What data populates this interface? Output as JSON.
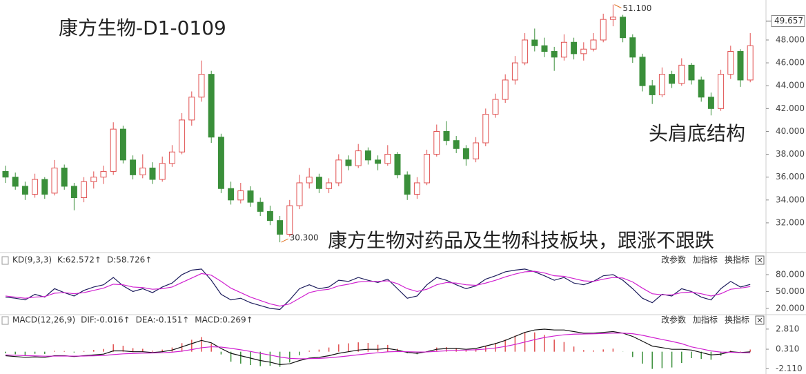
{
  "chart_data": [
    {
      "type": "candlestick",
      "title": "康方生物-D1-0109",
      "annotations": [
        "头肩底结构",
        "康方生物对药品及生物科技板块，跟涨不跟跌"
      ],
      "high_label": {
        "value": 51.1,
        "label": "51.100"
      },
      "low_label": {
        "value": 30.3,
        "label": "30.300"
      },
      "current_price": 49.657,
      "up_color": "#e05050",
      "down_color": "#3a8f3a",
      "ylim": [
        29.46,
        51.5
      ],
      "yticks": [
        {
          "value": 32,
          "label": "32.000"
        },
        {
          "value": 34,
          "label": "34.000"
        },
        {
          "value": 36,
          "label": "36.000"
        },
        {
          "value": 38,
          "label": "38.000"
        },
        {
          "value": 40,
          "label": "40.000"
        },
        {
          "value": 42,
          "label": "42.000"
        },
        {
          "value": 44,
          "label": "44.000"
        },
        {
          "value": 46,
          "label": "46.000"
        },
        {
          "value": 48,
          "label": "48.000"
        }
      ],
      "open": [
        36.5,
        36.0,
        35.2,
        34.5,
        35.8,
        34.6,
        36.8,
        35.2,
        34.2,
        35.6,
        36.0,
        36.5,
        40.2,
        37.5,
        36.2,
        36.8,
        35.8,
        37.2,
        38.2,
        41.0,
        43.0,
        45.0,
        39.5,
        35.0,
        34.0,
        34.8,
        33.8,
        33.0,
        32.2,
        31.0,
        33.5,
        35.5,
        36.0,
        35.0,
        35.5,
        37.5,
        37.0,
        38.3,
        37.5,
        37.2,
        38.0,
        36.2,
        34.5,
        35.5,
        38.0,
        40.0,
        39.2,
        38.5,
        37.6,
        39.0,
        41.5,
        42.8,
        44.5,
        46.0,
        48.0,
        47.5,
        47.0,
        46.5,
        47.8,
        46.8,
        47.2,
        48.0,
        49.8,
        50.0,
        48.2,
        46.5,
        44.0,
        43.2,
        45.0,
        44.2,
        45.8,
        44.5,
        43.0,
        42.0,
        45.0,
        47.0,
        44.5
      ],
      "high": [
        37.0,
        36.4,
        35.6,
        36.3,
        36.0,
        37.5,
        37.1,
        35.5,
        36.0,
        36.5,
        37.0,
        40.8,
        40.5,
        37.9,
        38.0,
        37.3,
        37.8,
        38.8,
        41.6,
        43.5,
        46.2,
        45.3,
        39.8,
        35.6,
        35.5,
        35.2,
        34.2,
        33.5,
        32.6,
        34.0,
        36.2,
        36.8,
        36.3,
        35.9,
        38.0,
        37.9,
        38.9,
        38.6,
        37.9,
        38.8,
        38.2,
        36.5,
        36.0,
        38.4,
        40.6,
        40.9,
        39.6,
        38.8,
        39.5,
        42.0,
        43.3,
        45.0,
        46.6,
        48.6,
        49.0,
        48.2,
        47.4,
        48.5,
        48.2,
        47.8,
        48.6,
        50.3,
        51.1,
        50.2,
        48.5,
        46.8,
        44.5,
        45.6,
        45.3,
        46.4,
        46.0,
        44.8,
        43.4,
        45.4,
        47.5,
        47.2,
        48.6
      ],
      "low": [
        35.5,
        34.9,
        34.0,
        34.2,
        34.1,
        34.4,
        34.9,
        33.1,
        33.8,
        35.0,
        35.4,
        36.2,
        37.2,
        35.8,
        35.9,
        35.4,
        35.6,
        36.9,
        38.0,
        40.5,
        42.6,
        39.0,
        34.6,
        33.6,
        33.7,
        33.4,
        32.6,
        31.8,
        30.3,
        30.8,
        33.2,
        35.0,
        34.6,
        34.6,
        35.2,
        36.6,
        36.8,
        37.1,
        36.6,
        37.0,
        35.9,
        34.0,
        34.1,
        35.3,
        37.8,
        38.8,
        38.1,
        37.0,
        37.3,
        38.7,
        41.2,
        42.5,
        44.1,
        45.8,
        47.0,
        46.5,
        45.3,
        46.2,
        46.3,
        46.2,
        47.0,
        47.8,
        49.2,
        47.8,
        46.0,
        43.5,
        42.4,
        43.0,
        43.8,
        44.0,
        44.1,
        42.6,
        41.4,
        41.8,
        44.6,
        43.9,
        44.3
      ],
      "close": [
        36.0,
        35.2,
        34.5,
        35.8,
        34.5,
        36.8,
        35.2,
        34.2,
        35.6,
        36.0,
        36.5,
        40.2,
        37.5,
        36.2,
        36.8,
        35.8,
        37.2,
        38.2,
        41.0,
        43.0,
        45.0,
        39.5,
        35.0,
        34.0,
        34.8,
        33.8,
        33.0,
        32.2,
        31.0,
        33.5,
        35.5,
        36.0,
        35.0,
        35.5,
        37.5,
        37.0,
        38.3,
        37.5,
        37.2,
        38.0,
        36.2,
        34.5,
        35.5,
        38.0,
        40.0,
        39.2,
        38.5,
        37.6,
        39.0,
        41.5,
        42.8,
        44.5,
        46.0,
        48.0,
        47.5,
        47.0,
        46.5,
        47.8,
        46.8,
        47.2,
        48.0,
        49.8,
        50.0,
        48.2,
        46.5,
        44.0,
        43.2,
        45.0,
        44.2,
        45.8,
        44.5,
        43.0,
        42.0,
        45.0,
        47.0,
        44.5,
        47.5
      ]
    },
    {
      "type": "line",
      "name": "KD(9,3,3)",
      "buttons": [
        "改参数",
        "加指标",
        "换指标"
      ],
      "ylim": [
        10,
        96
      ],
      "yticks": [
        {
          "value": 80,
          "label": "80.000"
        },
        {
          "value": 50,
          "label": "50.000"
        },
        {
          "value": 20,
          "label": "20.000"
        }
      ],
      "series": [
        {
          "name": "K:62.572↑",
          "color": "#1c1c5c",
          "values": [
            40,
            38,
            35,
            45,
            40,
            55,
            48,
            42,
            52,
            58,
            62,
            75,
            60,
            50,
            55,
            48,
            58,
            65,
            80,
            88,
            90,
            70,
            45,
            35,
            38,
            30,
            25,
            20,
            18,
            35,
            55,
            62,
            55,
            58,
            70,
            68,
            75,
            70,
            66,
            72,
            55,
            38,
            42,
            62,
            75,
            70,
            62,
            55,
            60,
            72,
            78,
            85,
            88,
            90,
            85,
            78,
            70,
            75,
            65,
            62,
            68,
            78,
            80,
            70,
            55,
            38,
            30,
            45,
            42,
            55,
            50,
            40,
            35,
            55,
            68,
            58,
            62.572
          ]
        },
        {
          "name": "D:58.726↑",
          "color": "#d020d0",
          "values": [
            42,
            40,
            38,
            40,
            41,
            47,
            48,
            46,
            48,
            52,
            56,
            63,
            62,
            58,
            57,
            54,
            55,
            58,
            66,
            74,
            82,
            79,
            68,
            56,
            48,
            40,
            34,
            28,
            24,
            28,
            38,
            48,
            52,
            54,
            60,
            63,
            67,
            68,
            68,
            69,
            64,
            55,
            50,
            54,
            62,
            66,
            65,
            62,
            61,
            65,
            70,
            76,
            81,
            85,
            86,
            83,
            78,
            77,
            73,
            69,
            68,
            72,
            75,
            74,
            67,
            56,
            46,
            44,
            44,
            48,
            49,
            46,
            42,
            46,
            54,
            56,
            58.726
          ]
        }
      ]
    },
    {
      "type": "macd",
      "name": "MACD(12,26,9)",
      "buttons": [
        "改参数",
        "加指标",
        "换指标"
      ],
      "ylim": [
        -2.6,
        3.4
      ],
      "up_color": "#e05050",
      "down_color": "#3a8f3a",
      "yticks": [
        {
          "value": 2.81,
          "label": "2.810"
        },
        {
          "value": 0.31,
          "label": "0.310"
        },
        {
          "value": -2.11,
          "label": "-2.110"
        }
      ],
      "series": [
        {
          "name": "DIF:-0.016↑",
          "color": "#111111",
          "values": [
            -0.5,
            -0.6,
            -0.7,
            -0.65,
            -0.7,
            -0.5,
            -0.5,
            -0.6,
            -0.5,
            -0.4,
            -0.3,
            0.1,
            0.1,
            0.0,
            0.0,
            -0.1,
            0.0,
            0.2,
            0.6,
            1.0,
            1.4,
            1.1,
            0.4,
            -0.2,
            -0.5,
            -0.8,
            -1.1,
            -1.3,
            -1.6,
            -1.5,
            -1.1,
            -0.8,
            -0.7,
            -0.5,
            -0.2,
            0.0,
            0.2,
            0.3,
            0.3,
            0.4,
            0.2,
            -0.1,
            -0.2,
            0.0,
            0.3,
            0.4,
            0.4,
            0.3,
            0.4,
            0.7,
            1.0,
            1.4,
            1.9,
            2.4,
            2.7,
            2.8,
            2.7,
            2.7,
            2.5,
            2.3,
            2.3,
            2.4,
            2.5,
            2.3,
            1.9,
            1.3,
            0.7,
            0.5,
            0.3,
            0.3,
            0.2,
            -0.1,
            -0.4,
            -0.3,
            0.0,
            -0.1,
            -0.016
          ]
        },
        {
          "name": "DEA:-0.151↑",
          "color": "#d020d0",
          "values": [
            -0.4,
            -0.44,
            -0.49,
            -0.52,
            -0.56,
            -0.55,
            -0.54,
            -0.55,
            -0.54,
            -0.51,
            -0.47,
            -0.36,
            -0.27,
            -0.22,
            -0.18,
            -0.16,
            -0.13,
            -0.06,
            0.07,
            0.26,
            0.49,
            0.61,
            0.57,
            0.42,
            0.24,
            0.03,
            -0.2,
            -0.42,
            -0.66,
            -0.83,
            -0.88,
            -0.86,
            -0.83,
            -0.76,
            -0.65,
            -0.52,
            -0.38,
            -0.24,
            -0.13,
            -0.02,
            0.02,
            0.0,
            -0.04,
            -0.03,
            0.04,
            0.11,
            0.17,
            0.2,
            0.24,
            0.33,
            0.46,
            0.65,
            0.9,
            1.2,
            1.5,
            1.76,
            1.95,
            2.1,
            2.18,
            2.2,
            2.22,
            2.26,
            2.31,
            2.31,
            2.23,
            2.04,
            1.77,
            1.52,
            1.28,
            1.0,
            0.6,
            0.35,
            0.1,
            -0.05,
            -0.07,
            -0.12,
            -0.151
          ]
        },
        {
          "name": "MACD:0.269↑",
          "color": "#888888",
          "kind": "bar",
          "values": [
            -0.2,
            -0.32,
            -0.42,
            -0.26,
            -0.28,
            0.1,
            0.08,
            -0.1,
            0.08,
            0.22,
            0.34,
            0.92,
            0.74,
            0.44,
            0.36,
            0.12,
            0.26,
            0.52,
            1.06,
            1.48,
            1.82,
            0.98,
            -0.34,
            -1.24,
            -1.48,
            -1.66,
            -1.8,
            -1.76,
            -1.88,
            -1.34,
            -0.44,
            0.12,
            0.26,
            0.52,
            0.9,
            1.04,
            1.16,
            1.08,
            0.86,
            0.84,
            0.36,
            -0.2,
            -0.32,
            0.06,
            0.52,
            0.58,
            0.46,
            0.2,
            0.32,
            0.74,
            1.08,
            1.5,
            2.0,
            2.4,
            2.4,
            2.08,
            1.5,
            1.2,
            0.64,
            0.2,
            0.16,
            0.28,
            0.38,
            -0.02,
            -0.66,
            -1.48,
            -2.14,
            -2.04,
            -1.96,
            -1.4,
            -0.8,
            -0.9,
            -1.0,
            -0.5,
            0.14,
            0.04,
            0.269
          ]
        }
      ]
    }
  ]
}
